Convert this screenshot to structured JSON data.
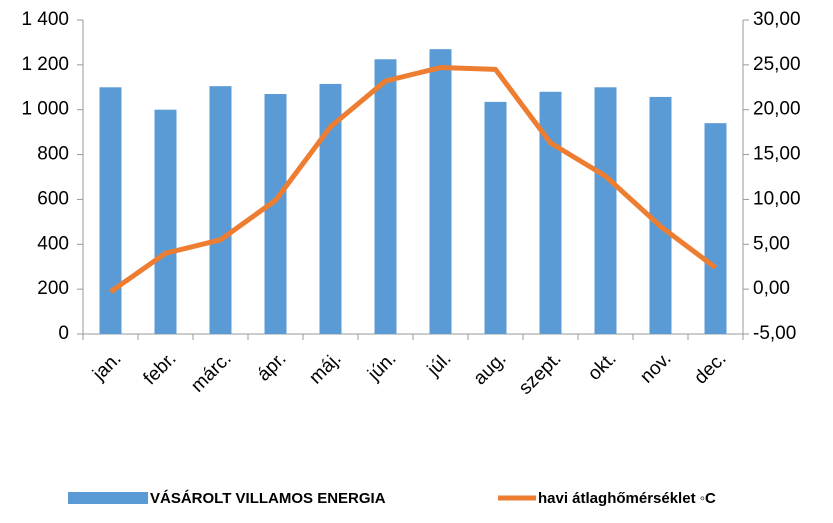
{
  "chart_data": {
    "type": "bar_line",
    "categories": [
      "jan.",
      "febr.",
      "márc.",
      "ápr.",
      "máj.",
      "jún.",
      "júl.",
      "aug.",
      "szept.",
      "okt.",
      "nov.",
      "dec."
    ],
    "series": [
      {
        "name": "VÁSÁROLT VILLAMOS ENERGIA",
        "type": "bar",
        "color": "#5b9bd5",
        "values": [
          1100,
          1000,
          1105,
          1070,
          1115,
          1225,
          1270,
          1035,
          1080,
          1100,
          1057,
          940
        ]
      },
      {
        "name": "havi átlaghőmérséklet ◦C",
        "type": "line",
        "axis": "y2",
        "color": "#ed7d31",
        "values": [
          -0.3,
          4.0,
          5.5,
          9.9,
          18.1,
          23.2,
          24.7,
          24.5,
          16.3,
          12.6,
          7.0,
          2.4
        ]
      }
    ],
    "ylim": [
      0,
      1400
    ],
    "yticks": [
      0,
      200,
      400,
      600,
      800,
      {
        "value": 1000,
        "label": "1 000"
      },
      {
        "value": 1200,
        "label": "1 200"
      },
      {
        "value": 1400,
        "label": "1 400"
      }
    ],
    "y2lim": [
      -5,
      30
    ],
    "y2ticks": [
      {
        "value": -5,
        "label": "-5,00"
      },
      {
        "value": 0,
        "label": "0,00"
      },
      {
        "value": 5,
        "label": "5,00"
      },
      {
        "value": 10,
        "label": "10,00"
      },
      {
        "value": 15,
        "label": "15,00"
      },
      {
        "value": 20,
        "label": "20,00"
      },
      {
        "value": 25,
        "label": "25,00"
      },
      {
        "value": 30,
        "label": "30,00"
      }
    ],
    "grid": false,
    "legend": "bottom"
  }
}
